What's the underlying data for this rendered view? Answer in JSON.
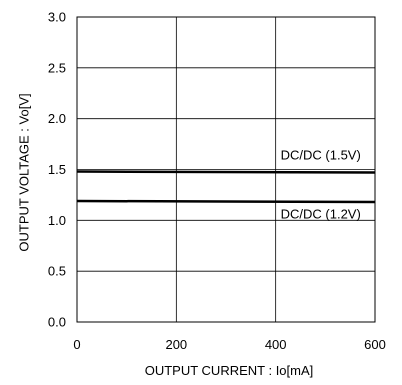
{
  "chart_data": {
    "type": "line",
    "xlabel": "OUTPUT CURRENT : Io[mA]",
    "ylabel": "OUTPUT VOLTAGE : Vo[V]",
    "xlim": [
      0,
      600
    ],
    "ylim": [
      0.0,
      3.0
    ],
    "x_ticks": [
      0,
      200,
      400,
      600
    ],
    "x_tick_labels": [
      "0",
      "200",
      "400",
      "600"
    ],
    "y_ticks": [
      0.0,
      0.5,
      1.0,
      1.5,
      2.0,
      2.5,
      3.0
    ],
    "y_tick_labels": [
      "0.0",
      "0.5",
      "1.0",
      "1.5",
      "2.0",
      "2.5",
      "3.0"
    ],
    "x_grid_values": [
      200,
      400
    ],
    "y_grid_values": [
      0.5,
      1.0,
      1.5,
      2.0,
      2.5
    ],
    "grid": true,
    "series": [
      {
        "name": "DC/DC (1.5V)",
        "x": [
          0,
          600
        ],
        "y": [
          1.48,
          1.47
        ],
        "label_anchor": {
          "x": 410,
          "y": 1.6
        }
      },
      {
        "name": "DC/DC (1.2V)",
        "x": [
          0,
          600
        ],
        "y": [
          1.19,
          1.18
        ],
        "label_anchor": {
          "x": 410,
          "y": 1.02
        }
      }
    ],
    "colors": {
      "line": "#000000",
      "grid": "#000000",
      "frame": "#000000"
    }
  }
}
